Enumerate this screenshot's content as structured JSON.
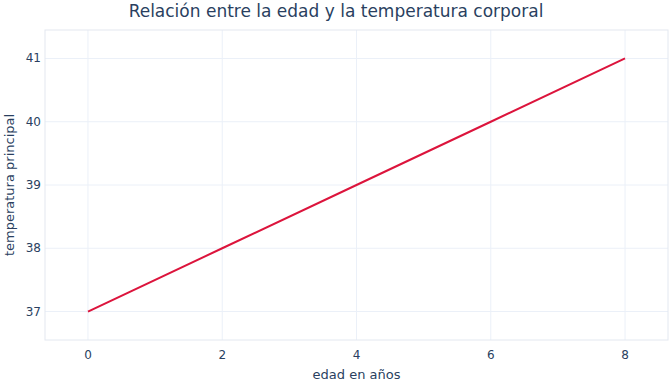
{
  "chart_data": {
    "type": "line",
    "title": "Relación entre la edad y la temperatura corporal",
    "x_label": "edad en años",
    "y_label": "temperatura principal",
    "x": [
      0,
      2,
      4,
      6,
      8
    ],
    "values": [
      37,
      38,
      39,
      40,
      41
    ],
    "color": "#dc143c",
    "xlim": [
      -0.64,
      8.64
    ],
    "xticks": [
      0,
      2,
      4,
      6,
      8
    ],
    "ylim": [
      36.55,
      41.45
    ],
    "yticks": [
      37,
      38,
      39,
      40,
      41
    ],
    "grid": true
  }
}
